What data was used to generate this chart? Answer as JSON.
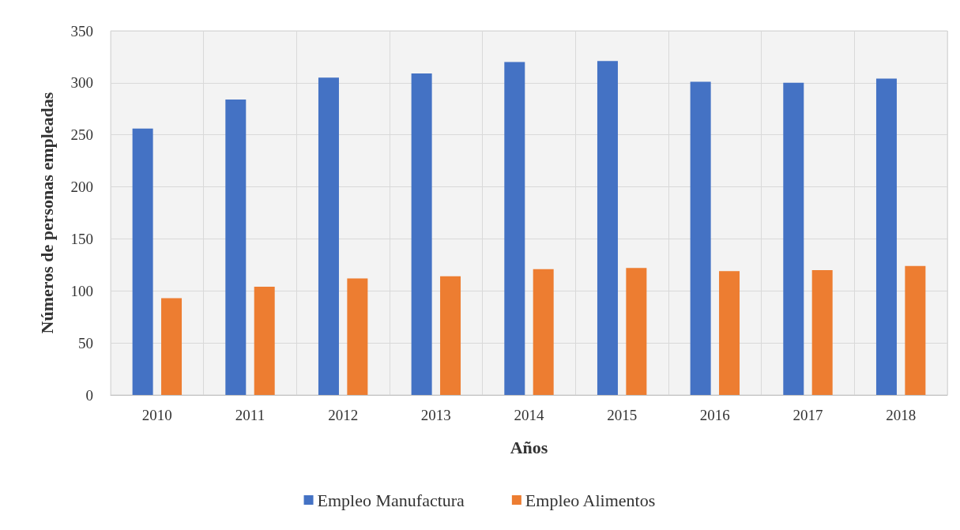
{
  "chart_data": {
    "type": "bar",
    "xlabel": "Años",
    "ylabel": "Números de personas empleadas",
    "categories": [
      "2010",
      "2011",
      "2012",
      "2013",
      "2014",
      "2015",
      "2016",
      "2017",
      "2018"
    ],
    "series": [
      {
        "name": "Empleo Manufactura",
        "color": "#4472c4",
        "values": [
          256,
          284,
          305,
          309,
          320,
          321,
          301,
          300,
          304
        ]
      },
      {
        "name": "Empleo Alimentos",
        "color": "#ed7d31",
        "values": [
          93,
          104,
          112,
          114,
          121,
          122,
          119,
          120,
          124
        ]
      }
    ],
    "ylim": [
      0,
      350
    ],
    "yticks": [
      0,
      50,
      100,
      150,
      200,
      250,
      300,
      350
    ],
    "grid": true,
    "legend": "bottom"
  }
}
